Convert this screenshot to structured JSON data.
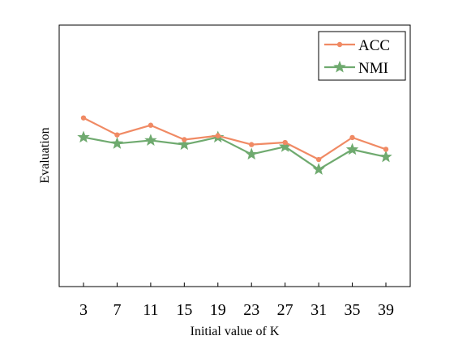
{
  "chart_data": {
    "type": "line",
    "title": "",
    "xlabel": "Initial value of K",
    "ylabel": "Evaluation",
    "x": [
      3,
      7,
      11,
      15,
      19,
      23,
      27,
      31,
      35,
      39
    ],
    "ylim": [
      0,
      1
    ],
    "grid": false,
    "legend_position": "top-right",
    "series": [
      {
        "name": "ACC",
        "color": "#f08a64",
        "marker": "circle",
        "values": [
          0.645,
          0.58,
          0.617,
          0.562,
          0.577,
          0.543,
          0.551,
          0.486,
          0.57,
          0.525
        ]
      },
      {
        "name": "NMI",
        "color": "#6faa6f",
        "marker": "star",
        "values": [
          0.571,
          0.547,
          0.559,
          0.543,
          0.571,
          0.506,
          0.535,
          0.448,
          0.524,
          0.496
        ]
      }
    ]
  }
}
